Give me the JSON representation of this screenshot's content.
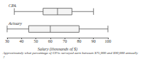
{
  "chart_data": {
    "type": "boxplot",
    "orientation": "horizontal",
    "series": [
      {
        "name": "CPA",
        "values": [
          35,
          55,
          65,
          75,
          90
        ]
      },
      {
        "name": "Actuary",
        "values": [
          30,
          45,
          60,
          80,
          100
        ]
      }
    ],
    "xlabel": "Salary (thousands of $)",
    "xlim": [
      30,
      100
    ],
    "xticks": [
      30,
      40,
      50,
      60,
      70,
      80,
      90,
      100
    ],
    "color": "#555555",
    "grid": false,
    "annotation": "Approximately what percentage of CPAs surveyed earn between $75,000 and $90,000 annually?"
  }
}
